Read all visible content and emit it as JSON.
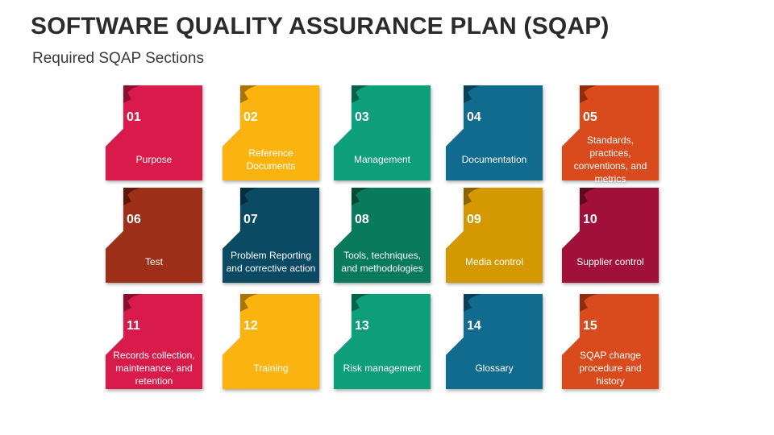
{
  "title": "SOFTWARE QUALITY ASSURANCE PLAN (SQAP)",
  "subtitle": "Required SQAP Sections",
  "cards": [
    {
      "num": "01",
      "label": "Purpose",
      "color": "#d81b4a",
      "dark": "#8c0f2e"
    },
    {
      "num": "02",
      "label": "Reference Documents",
      "color": "#fbb40f",
      "dark": "#a87408"
    },
    {
      "num": "03",
      "label": "Management",
      "color": "#0e9e7a",
      "dark": "#066349"
    },
    {
      "num": "04",
      "label": "Documentation",
      "color": "#106b8e",
      "dark": "#07405a"
    },
    {
      "num": "05",
      "label": "Standards, practices, conventions, and metrics",
      "color": "#d94a1c",
      "dark": "#8e2c0c"
    },
    {
      "num": "06",
      "label": "Test",
      "color": "#9e2f18",
      "dark": "#5e180b"
    },
    {
      "num": "07",
      "label": "Problem Reporting and corrective action",
      "color": "#0b4a63",
      "dark": "#052d3d"
    },
    {
      "num": "08",
      "label": "Tools, techniques, and methodologies",
      "color": "#0a7a5c",
      "dark": "#044a37"
    },
    {
      "num": "09",
      "label": "Media control",
      "color": "#d49800",
      "dark": "#8a6200"
    },
    {
      "num": "10",
      "label": "Supplier control",
      "color": "#a0103a",
      "dark": "#5e0822"
    },
    {
      "num": "11",
      "label": "Records collection, maintenance, and retention",
      "color": "#d81b4a",
      "dark": "#8c0f2e"
    },
    {
      "num": "12",
      "label": "Training",
      "color": "#fbb40f",
      "dark": "#a87408"
    },
    {
      "num": "13",
      "label": "Risk management",
      "color": "#0e9e7a",
      "dark": "#066349"
    },
    {
      "num": "14",
      "label": "Glossary",
      "color": "#106b8e",
      "dark": "#07405a"
    },
    {
      "num": "15",
      "label": "SQAP change procedure and history",
      "color": "#d94a1c",
      "dark": "#8e2c0c"
    }
  ]
}
